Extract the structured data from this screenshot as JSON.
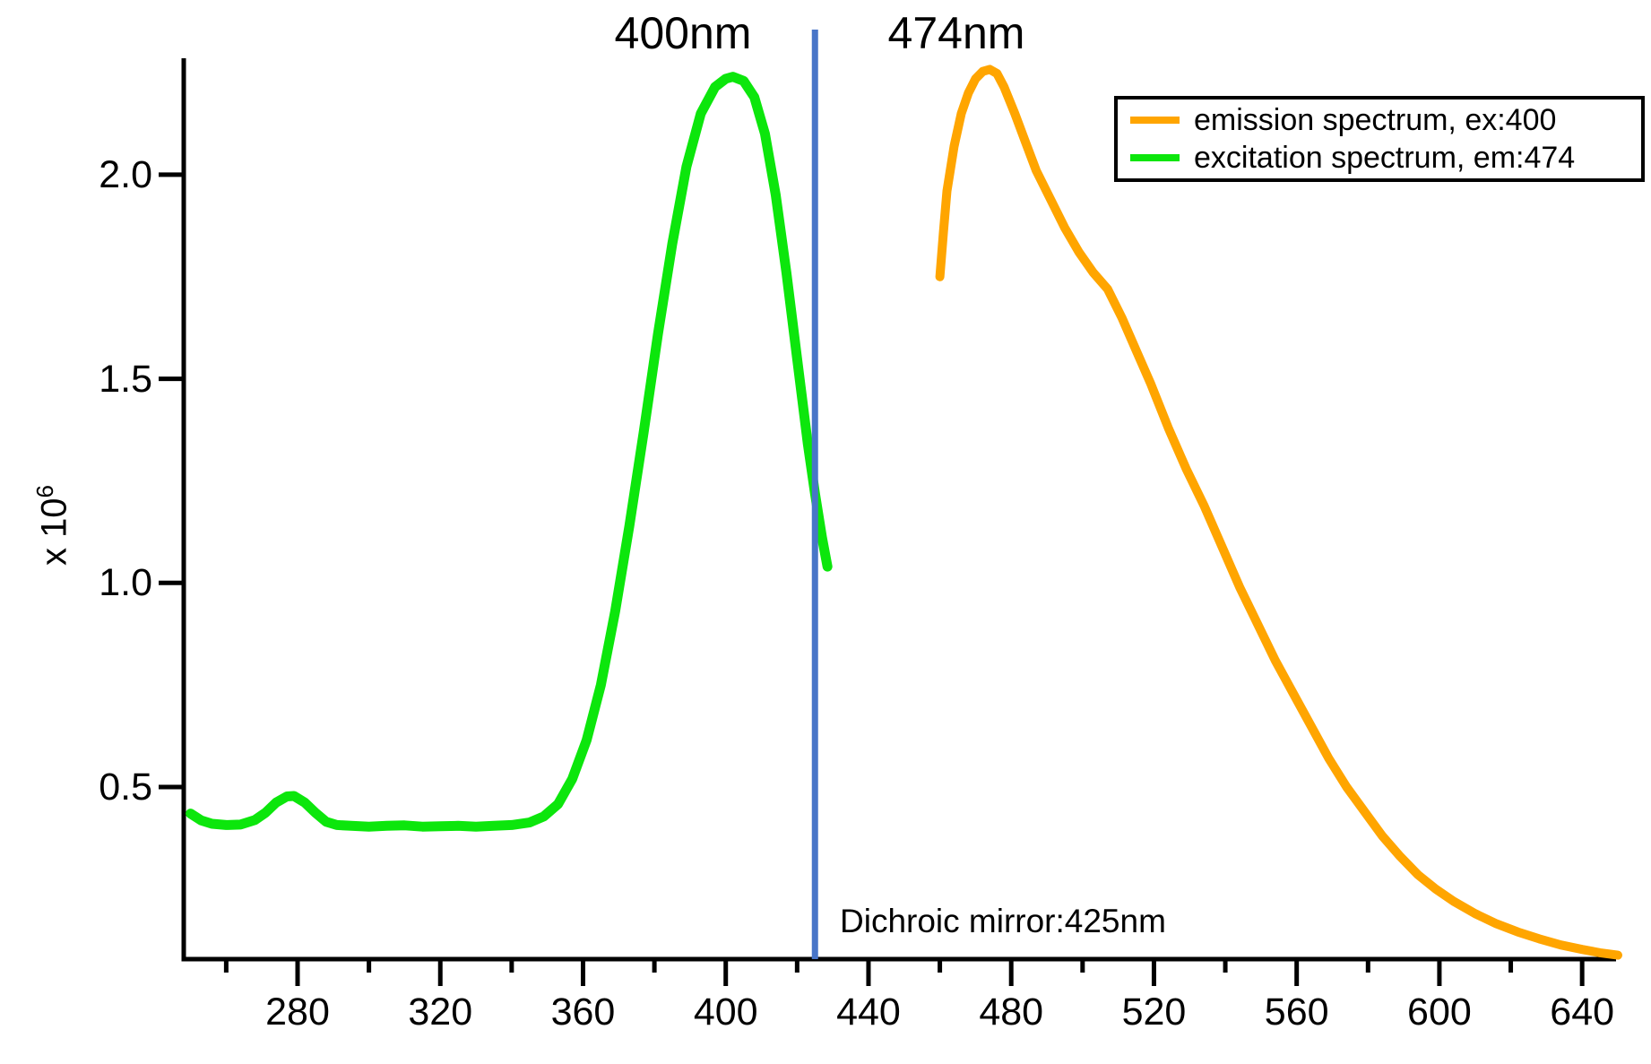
{
  "annotations": {
    "green_peak": "400nm",
    "orange_peak": "474nm",
    "dichroic": "Dichroic mirror:425nm"
  },
  "y_axis": {
    "label_prefix": "x 10",
    "label_exponent": "6",
    "tick_labels": [
      "0.5",
      "1.0",
      "1.5",
      "2.0"
    ]
  },
  "x_axis": {
    "tick_labels": [
      "280",
      "320",
      "360",
      "400",
      "440",
      "480",
      "520",
      "560",
      "600",
      "640"
    ]
  },
  "legend": {
    "entries": [
      {
        "label": "emission spectrum, ex:400",
        "color": "#FFA500"
      },
      {
        "label": "excitation spectrum, em:474",
        "color": "#0CE60C"
      }
    ]
  },
  "colors": {
    "emission": "#FFA500",
    "excitation": "#0CE60C",
    "dichroic_line": "#4875C8",
    "axis": "#000000"
  },
  "chart_data": {
    "type": "line",
    "title": "",
    "xlabel": "",
    "ylabel": "x 10^6",
    "grid": false,
    "legend_position": "top-right",
    "xlim": [
      248,
      650
    ],
    "ylim": [
      0.08,
      2.3
    ],
    "x_ticks_major": [
      280,
      320,
      360,
      400,
      440,
      480,
      520,
      560,
      600,
      640
    ],
    "x_ticks_minor": [
      260,
      300,
      340,
      380,
      420,
      460,
      500,
      540,
      580,
      620
    ],
    "y_ticks": [
      0.5,
      1.0,
      1.5,
      2.0
    ],
    "y_scale_factor": "1e6",
    "dichroic_mirror_nm": 425,
    "series": [
      {
        "name": "excitation spectrum, em:474",
        "color": "#0CE60C",
        "peak_nm": 400,
        "peak_value": 2.24,
        "points": [
          [
            250,
            0.435
          ],
          [
            253,
            0.418
          ],
          [
            256,
            0.41
          ],
          [
            260,
            0.407
          ],
          [
            264,
            0.408
          ],
          [
            268,
            0.419
          ],
          [
            271,
            0.437
          ],
          [
            274,
            0.462
          ],
          [
            277,
            0.477
          ],
          [
            279,
            0.478
          ],
          [
            282,
            0.462
          ],
          [
            285,
            0.437
          ],
          [
            288,
            0.415
          ],
          [
            291,
            0.407
          ],
          [
            295,
            0.405
          ],
          [
            300,
            0.403
          ],
          [
            305,
            0.405
          ],
          [
            310,
            0.406
          ],
          [
            315,
            0.403
          ],
          [
            320,
            0.404
          ],
          [
            325,
            0.405
          ],
          [
            330,
            0.403
          ],
          [
            335,
            0.405
          ],
          [
            340,
            0.407
          ],
          [
            345,
            0.413
          ],
          [
            349,
            0.428
          ],
          [
            353,
            0.458
          ],
          [
            357,
            0.52
          ],
          [
            361,
            0.615
          ],
          [
            365,
            0.75
          ],
          [
            369,
            0.93
          ],
          [
            373,
            1.14
          ],
          [
            377,
            1.37
          ],
          [
            381,
            1.61
          ],
          [
            385,
            1.83
          ],
          [
            389,
            2.02
          ],
          [
            393,
            2.15
          ],
          [
            397,
            2.215
          ],
          [
            400,
            2.235
          ],
          [
            402,
            2.24
          ],
          [
            405,
            2.23
          ],
          [
            408,
            2.19
          ],
          [
            411,
            2.1
          ],
          [
            414,
            1.95
          ],
          [
            417,
            1.76
          ],
          [
            420,
            1.55
          ],
          [
            423,
            1.34
          ],
          [
            425,
            1.22
          ],
          [
            427,
            1.11
          ],
          [
            428.5,
            1.04
          ]
        ]
      },
      {
        "name": "emission spectrum, ex:400",
        "color": "#FFA500",
        "peak_nm": 474,
        "peak_value": 2.26,
        "points": [
          [
            460,
            1.75
          ],
          [
            461,
            1.86
          ],
          [
            462,
            1.96
          ],
          [
            464,
            2.07
          ],
          [
            466,
            2.15
          ],
          [
            468,
            2.2
          ],
          [
            470,
            2.235
          ],
          [
            472,
            2.253
          ],
          [
            474,
            2.258
          ],
          [
            476,
            2.248
          ],
          [
            478,
            2.215
          ],
          [
            481,
            2.15
          ],
          [
            484,
            2.08
          ],
          [
            487,
            2.01
          ],
          [
            491,
            1.94
          ],
          [
            495,
            1.87
          ],
          [
            499,
            1.81
          ],
          [
            503,
            1.76
          ],
          [
            507,
            1.72
          ],
          [
            511,
            1.65
          ],
          [
            515,
            1.57
          ],
          [
            519,
            1.49
          ],
          [
            524,
            1.38
          ],
          [
            529,
            1.28
          ],
          [
            534,
            1.19
          ],
          [
            539,
            1.09
          ],
          [
            544,
            0.99
          ],
          [
            549,
            0.9
          ],
          [
            554,
            0.81
          ],
          [
            559,
            0.73
          ],
          [
            564,
            0.65
          ],
          [
            569,
            0.57
          ],
          [
            574,
            0.5
          ],
          [
            579,
            0.44
          ],
          [
            584,
            0.38
          ],
          [
            589,
            0.33
          ],
          [
            594,
            0.285
          ],
          [
            599,
            0.25
          ],
          [
            604,
            0.22
          ],
          [
            610,
            0.19
          ],
          [
            616,
            0.165
          ],
          [
            622,
            0.145
          ],
          [
            628,
            0.128
          ],
          [
            634,
            0.113
          ],
          [
            640,
            0.102
          ],
          [
            645,
            0.094
          ],
          [
            650,
            0.088
          ]
        ]
      }
    ]
  }
}
